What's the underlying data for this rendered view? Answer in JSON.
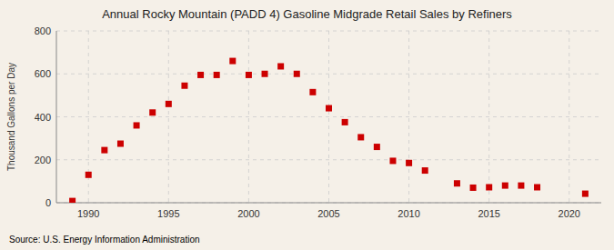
{
  "chart_data": {
    "type": "scatter",
    "title": "Annual Rocky Mountain (PADD 4) Gasoline Midgrade Retail Sales by Refiners",
    "ylabel": "Thousand Gallons per Day",
    "annotations": [
      "Source: U.S. Energy Information Administration"
    ],
    "x": [
      1989,
      1990,
      1991,
      1992,
      1993,
      1994,
      1995,
      1996,
      1997,
      1998,
      1999,
      2000,
      2001,
      2002,
      2003,
      2004,
      2005,
      2006,
      2007,
      2008,
      2009,
      2010,
      2011,
      2013,
      2014,
      2015,
      2016,
      2017,
      2018,
      2021
    ],
    "values": [
      8,
      130,
      245,
      275,
      360,
      420,
      460,
      545,
      595,
      595,
      660,
      595,
      600,
      635,
      600,
      515,
      440,
      375,
      305,
      260,
      195,
      185,
      150,
      90,
      70,
      72,
      80,
      80,
      72,
      42
    ],
    "color": "#cc0000",
    "marker": "square",
    "grid": true,
    "xlim": [
      1988,
      2022
    ],
    "xticks": [
      1990,
      1995,
      2000,
      2005,
      2010,
      2015,
      2020
    ],
    "ylim": [
      0,
      800
    ],
    "yticks": [
      0,
      200,
      400,
      600,
      800
    ]
  }
}
